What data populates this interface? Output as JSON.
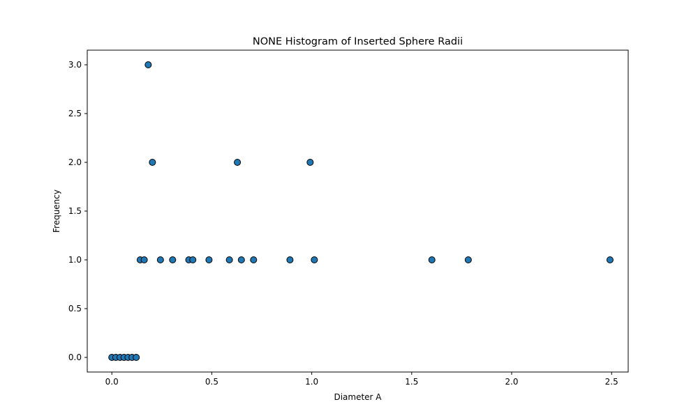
{
  "chart_data": {
    "type": "scatter",
    "title": "NONE Histogram of Inserted Sphere Radii",
    "xlabel": "Diameter A",
    "ylabel": "Frequency",
    "xlim": [
      -0.123,
      2.583
    ],
    "ylim": [
      -0.15,
      3.15
    ],
    "xticks": [
      0.0,
      0.5,
      1.0,
      1.5,
      2.0,
      2.5
    ],
    "yticks": [
      0.0,
      0.5,
      1.0,
      1.5,
      2.0,
      2.5,
      3.0
    ],
    "xtick_labels": [
      "0.0",
      "0.5",
      "1.0",
      "1.5",
      "2.0",
      "2.5"
    ],
    "ytick_labels": [
      "0.0",
      "0.5",
      "1.0",
      "1.5",
      "2.0",
      "2.5",
      "3.0"
    ],
    "grid": false,
    "marker_color": "#1f77b4",
    "marker_edge_color": "#000000",
    "series": [
      {
        "x": [
          0.0,
          0.02,
          0.041,
          0.061,
          0.081,
          0.101,
          0.122,
          0.142,
          0.162,
          0.182,
          0.203,
          0.243,
          0.304,
          0.385,
          0.405,
          0.486,
          0.588,
          0.628,
          0.648,
          0.709,
          0.891,
          0.992,
          1.013,
          1.601,
          1.783,
          2.492
        ],
        "y": [
          0,
          0,
          0,
          0,
          0,
          0,
          0,
          1,
          1,
          3,
          2,
          1,
          1,
          1,
          1,
          1,
          1,
          2,
          1,
          1,
          1,
          2,
          1,
          1,
          1,
          1
        ]
      }
    ]
  }
}
